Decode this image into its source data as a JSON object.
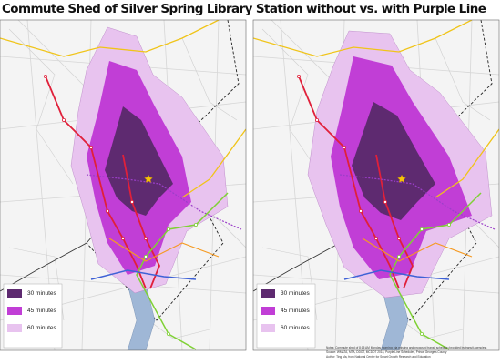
{
  "title": "Commute Shed of Silver Spring Library Station without vs. with Purple Line",
  "panels": [
    {
      "legend": [
        "30 minutes",
        "45 minutes",
        "60 minutes"
      ]
    },
    {
      "legend": [
        "30 minutes",
        "45 minutes",
        "60 minutes"
      ]
    }
  ],
  "notes": [
    "Notes: Commute shed of 8:15 AM Monday morning; via existing and proposed transit schedule (provided by transit agencies)",
    "Source: WMATA, MTA, DDOT, MCDOT 2018, Purple Line Schedules, Prince George's County",
    "Author: Ting Ma, from National Center for Smart Growth Research and Education"
  ]
}
